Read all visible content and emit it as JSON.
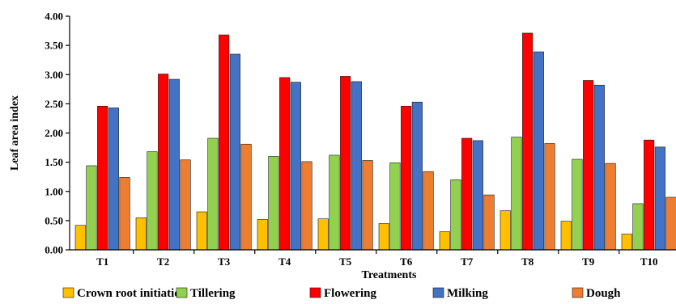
{
  "chart_data": {
    "type": "bar",
    "title": "",
    "xlabel": "Treatments",
    "ylabel": "Leaf area index",
    "ylim": [
      0,
      4
    ],
    "yticks": [
      "0.00",
      "0.50",
      "1.00",
      "1.50",
      "2.00",
      "2.50",
      "3.00",
      "3.50",
      "4.00"
    ],
    "categories": [
      "T1",
      "T2",
      "T3",
      "T4",
      "T5",
      "T6",
      "T7",
      "T8",
      "T9",
      "T10"
    ],
    "grid": false,
    "legend_position": "bottom",
    "series": [
      {
        "name": "Crown root initiation",
        "color": "#ffc000",
        "values": [
          0.42,
          0.55,
          0.65,
          0.52,
          0.53,
          0.45,
          0.31,
          0.67,
          0.49,
          0.27
        ]
      },
      {
        "name": "Tillering",
        "color": "#92d050",
        "values": [
          1.44,
          1.68,
          1.91,
          1.6,
          1.62,
          1.49,
          1.2,
          1.93,
          1.55,
          0.79
        ]
      },
      {
        "name": "Flowering",
        "color": "#ff0000",
        "values": [
          2.46,
          3.01,
          3.68,
          2.95,
          2.97,
          2.46,
          1.91,
          3.71,
          2.9,
          1.88
        ]
      },
      {
        "name": "Milking",
        "color": "#4472c4",
        "values": [
          2.43,
          2.92,
          3.35,
          2.87,
          2.88,
          2.53,
          1.87,
          3.39,
          2.82,
          1.76
        ]
      },
      {
        "name": "Dough",
        "color": "#ed7d31",
        "values": [
          1.24,
          1.54,
          1.81,
          1.51,
          1.53,
          1.34,
          0.94,
          1.82,
          1.48,
          0.9
        ]
      }
    ]
  }
}
